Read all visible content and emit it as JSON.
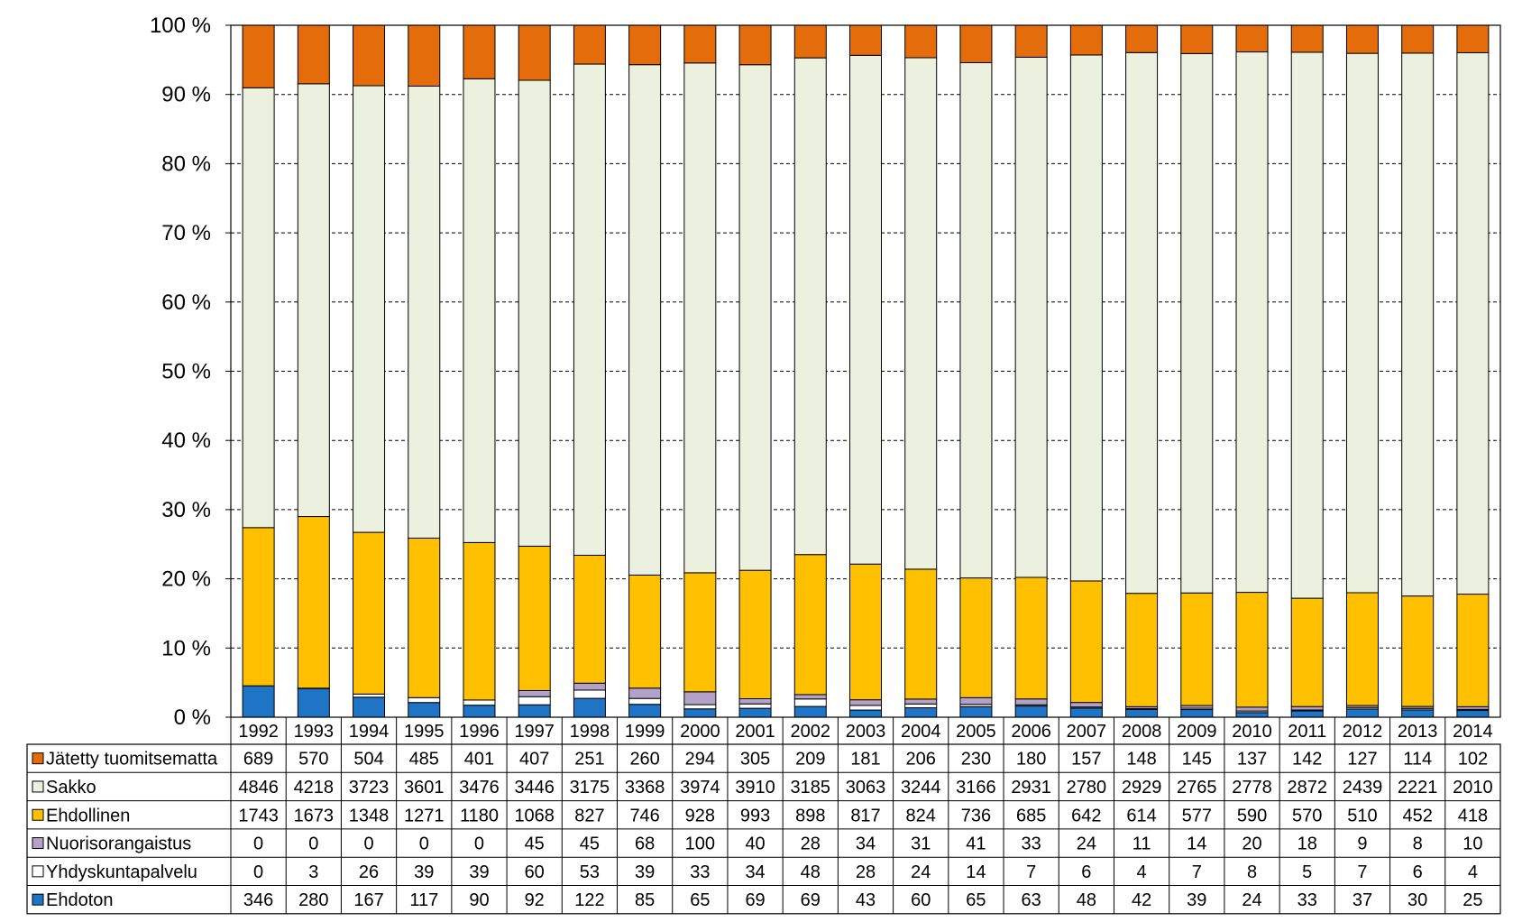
{
  "chart_data": {
    "type": "bar",
    "stacked": "percent",
    "title": "",
    "xlabel": "",
    "ylabel": "",
    "ylim": [
      0,
      100
    ],
    "y_ticks": [
      "0 %",
      "10 %",
      "20 %",
      "30 %",
      "40 %",
      "50 %",
      "60 %",
      "70 %",
      "80 %",
      "90 %",
      "100 %"
    ],
    "grid": "horizontal dashed",
    "legend": "data table below chart",
    "categories": [
      "1992",
      "1993",
      "1994",
      "1995",
      "1996",
      "1997",
      "1998",
      "1999",
      "2000",
      "2001",
      "2002",
      "2003",
      "2004",
      "2005",
      "2006",
      "2007",
      "2008",
      "2009",
      "2010",
      "2011",
      "2012",
      "2013",
      "2014"
    ],
    "series": [
      {
        "name": "Ehdoton",
        "color": "#1F74C5",
        "values": [
          346,
          280,
          167,
          117,
          90,
          92,
          122,
          85,
          65,
          69,
          69,
          43,
          60,
          65,
          63,
          48,
          42,
          39,
          24,
          33,
          37,
          30,
          25
        ]
      },
      {
        "name": "Yhdyskuntapalvelu",
        "color": "#FFFFFF",
        "values": [
          0,
          3,
          26,
          39,
          39,
          60,
          53,
          39,
          33,
          34,
          48,
          28,
          24,
          14,
          7,
          6,
          4,
          7,
          8,
          5,
          7,
          6,
          4
        ]
      },
      {
        "name": "Nuorisorangaistus",
        "color": "#B3A2C7",
        "values": [
          0,
          0,
          0,
          0,
          0,
          45,
          45,
          68,
          100,
          40,
          28,
          34,
          31,
          41,
          33,
          24,
          11,
          14,
          20,
          18,
          9,
          8,
          10
        ]
      },
      {
        "name": "Ehdollinen",
        "color": "#FFC000",
        "values": [
          1743,
          1673,
          1348,
          1271,
          1180,
          1068,
          827,
          746,
          928,
          993,
          898,
          817,
          824,
          736,
          685,
          642,
          614,
          577,
          590,
          570,
          510,
          452,
          418
        ]
      },
      {
        "name": "Sakko",
        "color": "#EBF1DE",
        "values": [
          4846,
          4218,
          3723,
          3601,
          3476,
          3446,
          3175,
          3368,
          3974,
          3910,
          3185,
          3063,
          3244,
          3166,
          2931,
          2780,
          2929,
          2765,
          2778,
          2872,
          2439,
          2221,
          2010
        ]
      },
      {
        "name": "Jätetty tuomitsematta",
        "color": "#E46C0A",
        "values": [
          689,
          570,
          504,
          485,
          401,
          407,
          251,
          260,
          294,
          305,
          209,
          181,
          206,
          230,
          180,
          157,
          148,
          145,
          137,
          142,
          127,
          114,
          102
        ]
      }
    ],
    "table_row_order": [
      "Jätetty tuomitsematta",
      "Sakko",
      "Ehdollinen",
      "Nuorisorangaistus",
      "Yhdyskuntapalvelu",
      "Ehdoton"
    ]
  }
}
